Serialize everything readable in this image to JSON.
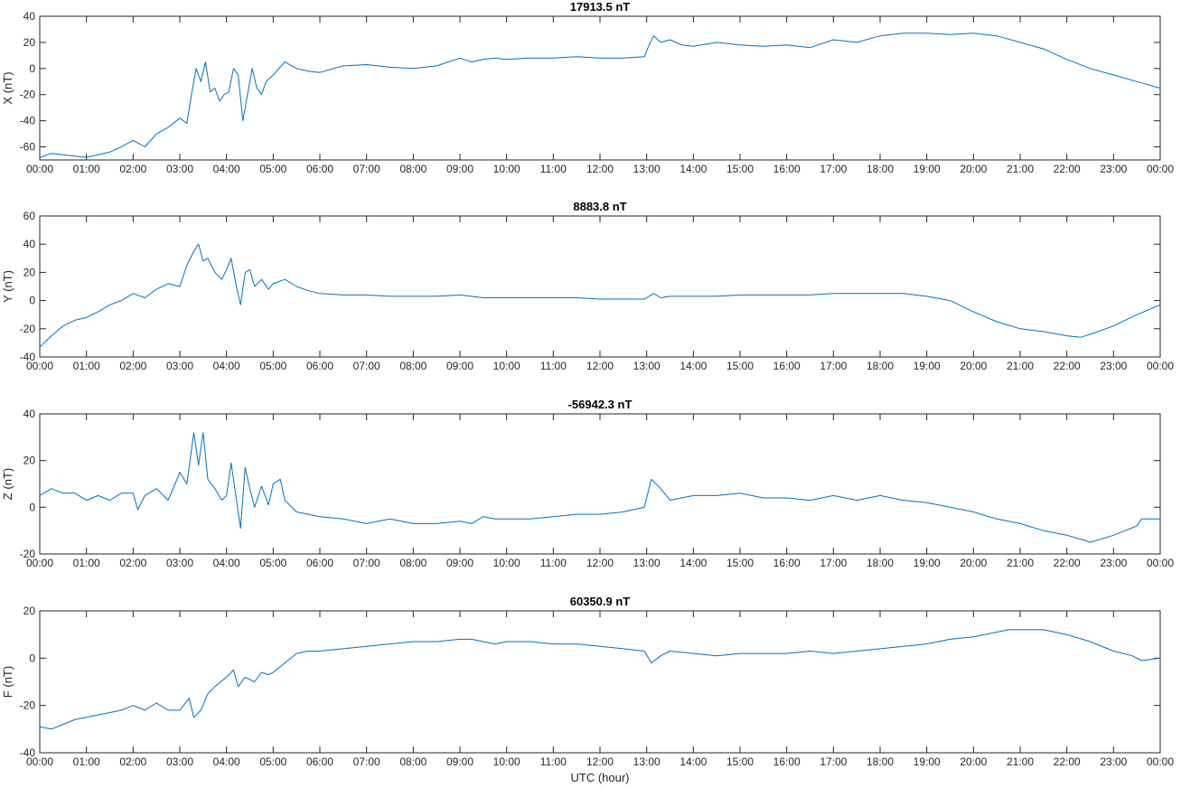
{
  "chart_data": [
    {
      "type": "line",
      "title": "17913.5 nT",
      "xlabel": "",
      "ylabel": "X (nT)",
      "ylim": [
        -70,
        40
      ],
      "yticks": [
        -60,
        -40,
        -20,
        0,
        20,
        40
      ],
      "xlim": [
        0,
        24
      ],
      "xtick_labels": [
        "00:00",
        "01:00",
        "02:00",
        "03:00",
        "04:00",
        "05:00",
        "06:00",
        "07:00",
        "08:00",
        "09:00",
        "10:00",
        "11:00",
        "12:00",
        "13:00",
        "14:00",
        "15:00",
        "16:00",
        "17:00",
        "18:00",
        "19:00",
        "20:00",
        "21:00",
        "22:00",
        "23:00",
        "00:00"
      ],
      "grid": false,
      "series": [
        {
          "color": "#0072BD",
          "x": [
            0,
            0.25,
            0.5,
            0.75,
            1.0,
            1.25,
            1.5,
            1.75,
            2.0,
            2.25,
            2.5,
            2.75,
            3.0,
            3.15,
            3.25,
            3.35,
            3.45,
            3.55,
            3.65,
            3.75,
            3.85,
            3.95,
            4.05,
            4.15,
            4.25,
            4.35,
            4.45,
            4.55,
            4.65,
            4.75,
            4.85,
            5.0,
            5.25,
            5.5,
            5.75,
            6.0,
            6.5,
            7.0,
            7.5,
            8.0,
            8.5,
            9.0,
            9.25,
            9.5,
            9.75,
            10.0,
            10.5,
            11.0,
            11.5,
            12.0,
            12.5,
            12.95,
            13.05,
            13.15,
            13.3,
            13.5,
            13.75,
            14.0,
            14.5,
            15.0,
            15.5,
            16.0,
            16.5,
            17.0,
            17.5,
            18.0,
            18.5,
            19.0,
            19.5,
            20.0,
            20.5,
            21.0,
            21.5,
            22.0,
            22.5,
            23.0,
            23.5,
            24.0
          ],
          "y": [
            -68,
            -65,
            -66,
            -67,
            -68,
            -66,
            -64,
            -60,
            -55,
            -60,
            -50,
            -45,
            -38,
            -42,
            -20,
            0,
            -10,
            5,
            -18,
            -15,
            -25,
            -20,
            -18,
            0,
            -5,
            -40,
            -20,
            0,
            -15,
            -20,
            -10,
            -5,
            5,
            0,
            -2,
            -3,
            2,
            3,
            1,
            0,
            2,
            8,
            5,
            7,
            8,
            7,
            8,
            8,
            9,
            8,
            8,
            9,
            18,
            25,
            20,
            22,
            18,
            17,
            20,
            18,
            17,
            18,
            16,
            22,
            20,
            25,
            27,
            27,
            26,
            27,
            25,
            20,
            15,
            7,
            0,
            -5,
            -10,
            -15
          ]
        }
      ]
    },
    {
      "type": "line",
      "title": "8883.8 nT",
      "xlabel": "",
      "ylabel": "Y (nT)",
      "ylim": [
        -40,
        60
      ],
      "yticks": [
        -40,
        -20,
        0,
        20,
        40,
        60
      ],
      "xlim": [
        0,
        24
      ],
      "xtick_labels": [
        "00:00",
        "01:00",
        "02:00",
        "03:00",
        "04:00",
        "05:00",
        "06:00",
        "07:00",
        "08:00",
        "09:00",
        "10:00",
        "11:00",
        "12:00",
        "13:00",
        "14:00",
        "15:00",
        "16:00",
        "17:00",
        "18:00",
        "19:00",
        "20:00",
        "21:00",
        "22:00",
        "23:00",
        "00:00"
      ],
      "grid": false,
      "series": [
        {
          "color": "#0072BD",
          "x": [
            0,
            0.25,
            0.5,
            0.75,
            1.0,
            1.25,
            1.5,
            1.75,
            2.0,
            2.25,
            2.5,
            2.75,
            3.0,
            3.15,
            3.3,
            3.4,
            3.5,
            3.6,
            3.75,
            3.9,
            4.0,
            4.1,
            4.2,
            4.3,
            4.4,
            4.5,
            4.6,
            4.75,
            4.9,
            5.0,
            5.25,
            5.5,
            5.75,
            6.0,
            6.5,
            7.0,
            7.5,
            8.0,
            8.5,
            9.0,
            9.5,
            10.0,
            10.5,
            11.0,
            11.5,
            12.0,
            12.5,
            12.95,
            13.15,
            13.3,
            13.5,
            14.0,
            14.5,
            15.0,
            15.5,
            16.0,
            16.5,
            17.0,
            17.5,
            18.0,
            18.5,
            19.0,
            19.5,
            20.0,
            20.5,
            21.0,
            21.5,
            22.0,
            22.3,
            22.5,
            23.0,
            23.5,
            24.0
          ],
          "y": [
            -33,
            -25,
            -18,
            -14,
            -12,
            -8,
            -3,
            0,
            5,
            2,
            8,
            12,
            10,
            25,
            35,
            40,
            28,
            30,
            20,
            15,
            22,
            30,
            12,
            -3,
            20,
            22,
            10,
            15,
            8,
            12,
            15,
            10,
            7,
            5,
            4,
            4,
            3,
            3,
            3,
            4,
            2,
            2,
            2,
            2,
            2,
            1,
            1,
            1,
            5,
            2,
            3,
            3,
            3,
            4,
            4,
            4,
            4,
            5,
            5,
            5,
            5,
            3,
            0,
            -8,
            -15,
            -20,
            -22,
            -25,
            -26,
            -24,
            -18,
            -10,
            -3
          ]
        }
      ]
    },
    {
      "type": "line",
      "title": "-56942.3 nT",
      "xlabel": "",
      "ylabel": "Z (nT)",
      "ylim": [
        -20,
        40
      ],
      "yticks": [
        -20,
        0,
        20,
        40
      ],
      "xlim": [
        0,
        24
      ],
      "xtick_labels": [
        "00:00",
        "01:00",
        "02:00",
        "03:00",
        "04:00",
        "05:00",
        "06:00",
        "07:00",
        "08:00",
        "09:00",
        "10:00",
        "11:00",
        "12:00",
        "13:00",
        "14:00",
        "15:00",
        "16:00",
        "17:00",
        "18:00",
        "19:00",
        "20:00",
        "21:00",
        "22:00",
        "23:00",
        "00:00"
      ],
      "grid": false,
      "series": [
        {
          "color": "#0072BD",
          "x": [
            0,
            0.25,
            0.5,
            0.75,
            1.0,
            1.25,
            1.5,
            1.75,
            2.0,
            2.1,
            2.25,
            2.5,
            2.75,
            2.9,
            3.0,
            3.15,
            3.3,
            3.4,
            3.5,
            3.6,
            3.75,
            3.9,
            4.0,
            4.1,
            4.2,
            4.3,
            4.4,
            4.5,
            4.6,
            4.75,
            4.9,
            5.0,
            5.15,
            5.25,
            5.5,
            5.75,
            6.0,
            6.5,
            7.0,
            7.5,
            8.0,
            8.5,
            9.0,
            9.25,
            9.5,
            9.75,
            10.0,
            10.5,
            11.0,
            11.5,
            12.0,
            12.5,
            12.95,
            13.1,
            13.3,
            13.5,
            14.0,
            14.5,
            15.0,
            15.5,
            16.0,
            16.5,
            17.0,
            17.5,
            18.0,
            18.5,
            19.0,
            19.5,
            20.0,
            20.5,
            21.0,
            21.5,
            22.0,
            22.35,
            22.5,
            23.0,
            23.5,
            23.6,
            24.0
          ],
          "y": [
            5,
            8,
            6,
            6,
            3,
            5,
            3,
            6,
            6,
            -1,
            5,
            8,
            3,
            10,
            15,
            10,
            32,
            18,
            32,
            12,
            8,
            3,
            5,
            19,
            5,
            -9,
            17,
            8,
            0,
            9,
            1,
            10,
            12,
            3,
            -2,
            -3,
            -4,
            -5,
            -7,
            -5,
            -7,
            -7,
            -6,
            -7,
            -4,
            -5,
            -5,
            -5,
            -4,
            -3,
            -3,
            -2,
            0,
            12,
            8,
            3,
            5,
            5,
            6,
            4,
            4,
            3,
            5,
            3,
            5,
            3,
            2,
            0,
            -2,
            -5,
            -7,
            -10,
            -12,
            -14,
            -15,
            -12,
            -8,
            -5,
            -5
          ]
        }
      ]
    },
    {
      "type": "line",
      "title": "60350.9 nT",
      "xlabel": "UTC (hour)",
      "ylabel": "F (nT)",
      "ylim": [
        -40,
        20
      ],
      "yticks": [
        -40,
        -20,
        0,
        20
      ],
      "xlim": [
        0,
        24
      ],
      "xtick_labels": [
        "00:00",
        "01:00",
        "02:00",
        "03:00",
        "04:00",
        "05:00",
        "06:00",
        "07:00",
        "08:00",
        "09:00",
        "10:00",
        "11:00",
        "12:00",
        "13:00",
        "14:00",
        "15:00",
        "16:00",
        "17:00",
        "18:00",
        "19:00",
        "20:00",
        "21:00",
        "22:00",
        "23:00",
        "00:00"
      ],
      "grid": false,
      "series": [
        {
          "color": "#0072BD",
          "x": [
            0,
            0.25,
            0.5,
            0.75,
            1.0,
            1.25,
            1.5,
            1.75,
            2.0,
            2.25,
            2.5,
            2.75,
            3.0,
            3.2,
            3.3,
            3.45,
            3.6,
            3.75,
            4.0,
            4.15,
            4.25,
            4.4,
            4.6,
            4.75,
            4.9,
            5.0,
            5.25,
            5.5,
            5.75,
            6.0,
            6.5,
            7.0,
            7.5,
            8.0,
            8.5,
            9.0,
            9.25,
            9.5,
            9.75,
            10.0,
            10.5,
            11.0,
            11.5,
            12.0,
            12.5,
            12.95,
            13.1,
            13.3,
            13.5,
            14.0,
            14.5,
            15.0,
            15.5,
            16.0,
            16.5,
            17.0,
            17.5,
            18.0,
            18.5,
            19.0,
            19.5,
            20.0,
            20.5,
            20.75,
            21.0,
            21.5,
            22.0,
            22.5,
            23.0,
            23.4,
            23.6,
            24.0
          ],
          "y": [
            -29,
            -30,
            -28,
            -26,
            -25,
            -24,
            -23,
            -22,
            -20,
            -22,
            -19,
            -22,
            -22,
            -17,
            -25,
            -22,
            -15,
            -12,
            -8,
            -5,
            -12,
            -8,
            -10,
            -6,
            -7,
            -6,
            -2,
            2,
            3,
            3,
            4,
            5,
            6,
            7,
            7,
            8,
            8,
            7,
            6,
            7,
            7,
            6,
            6,
            5,
            4,
            3,
            -2,
            1,
            3,
            2,
            1,
            2,
            2,
            2,
            3,
            2,
            3,
            4,
            5,
            6,
            8,
            9,
            11,
            12,
            12,
            12,
            10,
            7,
            3,
            1,
            -1,
            0
          ]
        }
      ]
    }
  ]
}
